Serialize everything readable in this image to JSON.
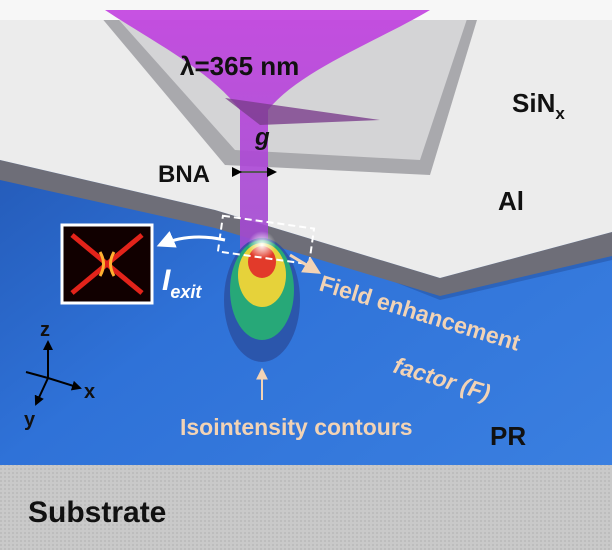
{
  "labels": {
    "wavelength": "λ=365 nm",
    "gap": "g",
    "bna": "BNA",
    "sin": {
      "main": "SiN",
      "sub": "x"
    },
    "al": "Al",
    "iexit": {
      "main": "I",
      "sub": "exit"
    },
    "field": [
      "Field enhancement",
      "factor (F)"
    ],
    "contours": "Isointensity contours",
    "pr": "PR",
    "substrate": "Substrate",
    "axes": {
      "z": "z",
      "x": "x",
      "y": "y"
    }
  }
}
